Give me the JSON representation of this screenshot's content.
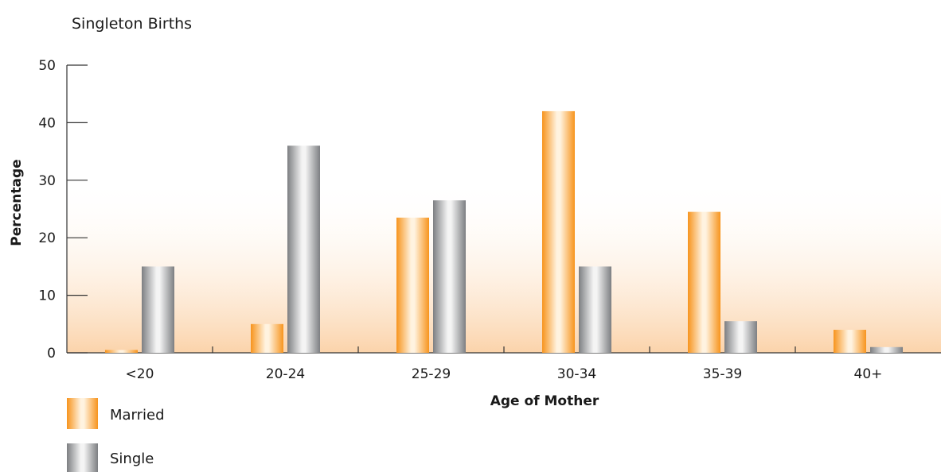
{
  "chart_data": {
    "type": "bar",
    "title": "Singleton Births",
    "xlabel": "Age of Mother",
    "ylabel": "Percentage",
    "categories": [
      "<20",
      "20-24",
      "25-29",
      "30-34",
      "35-39",
      "40+"
    ],
    "series": [
      {
        "name": "Married",
        "values": [
          0.5,
          5,
          23.5,
          42,
          24.5,
          4
        ]
      },
      {
        "name": "Single",
        "values": [
          15,
          36,
          26.5,
          15,
          5.5,
          1
        ]
      }
    ],
    "ylim": [
      0,
      50
    ],
    "yticks": [
      0,
      10,
      20,
      30,
      40,
      50
    ],
    "grid": false,
    "legend_position": "bottom-left",
    "colors": {
      "Married": "#f7941d",
      "Single": "#8a8c8f",
      "background_gradient": "#fbd3aa"
    }
  }
}
